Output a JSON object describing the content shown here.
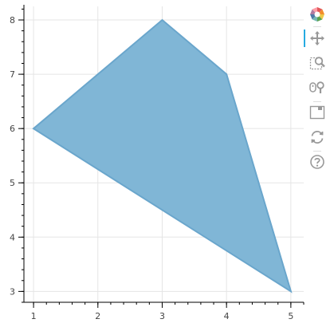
{
  "chart_data": {
    "type": "area",
    "title": "",
    "xlabel": "",
    "ylabel": "",
    "xlim": [
      0.85,
      5.2
    ],
    "ylim": [
      2.8,
      8.25
    ],
    "x_ticks": [
      1,
      2,
      3,
      4,
      5
    ],
    "y_ticks": [
      3,
      4,
      5,
      6,
      7,
      8
    ],
    "x_minor_step": 0.2,
    "y_minor_step": 0.2,
    "grid": true,
    "series": [
      {
        "x": [
          1,
          3,
          4,
          5
        ],
        "y": [
          6,
          8,
          7,
          3
        ],
        "fill_color": "#80b6d6",
        "line_color": "#6aa6cc"
      }
    ]
  },
  "toolbar": {
    "tools": [
      {
        "name": "bokeh-logo",
        "icon": "bokeh-logo-icon",
        "active": false
      },
      {
        "name": "pan",
        "icon": "pan-icon",
        "active": true
      },
      {
        "name": "box-zoom",
        "icon": "box-zoom-icon",
        "active": false
      },
      {
        "name": "wheel-zoom",
        "icon": "wheel-zoom-icon",
        "active": false
      },
      {
        "name": "save",
        "icon": "save-icon",
        "active": false
      },
      {
        "name": "reset",
        "icon": "reset-icon",
        "active": false
      },
      {
        "name": "help",
        "icon": "help-icon",
        "active": false
      }
    ],
    "colors": {
      "icon": "#999999",
      "active": "#26aae1"
    }
  }
}
